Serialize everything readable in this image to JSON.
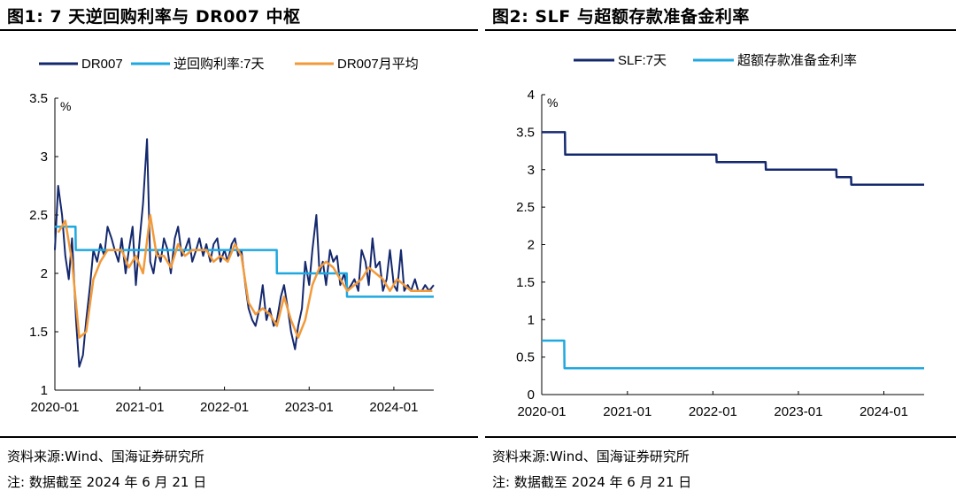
{
  "left": {
    "title": "图1:  7 天逆回购利率与 DR007 中枢",
    "source": "资料来源:Wind、国海证券研究所",
    "note": "注: 数据截至 2024 年 6 月 21 日",
    "colors": {
      "dr007": "#14286e",
      "repo": "#1fa8df",
      "avg": "#f29a3a"
    }
  },
  "right": {
    "title": "图2:  SLF 与超额存款准备金利率",
    "source": "资料来源:Wind、国海证券研究所",
    "note": "注: 数据截至 2024 年 6 月 21 日",
    "colors": {
      "slf": "#14286e",
      "excess": "#1fa8df"
    }
  },
  "chart_data": [
    {
      "type": "line",
      "title": "",
      "ylabel": "%",
      "ylim": [
        1,
        3.5
      ],
      "xlim": [
        "2020-01-01",
        "2024-06-21"
      ],
      "yticks": [
        "1",
        "1.5",
        "2",
        "2.5",
        "3",
        "3.5"
      ],
      "xticks": [
        "2020-01",
        "2021-01",
        "2022-01",
        "2023-01",
        "2024-01"
      ],
      "grid": false,
      "legend_position": "top",
      "series": [
        {
          "name": "DR007",
          "x": [
            "2020-01-01",
            "2020-01-15",
            "2020-02-01",
            "2020-02-15",
            "2020-03-01",
            "2020-03-15",
            "2020-04-01",
            "2020-04-15",
            "2020-05-01",
            "2020-05-15",
            "2020-06-01",
            "2020-06-15",
            "2020-07-01",
            "2020-07-15",
            "2020-08-01",
            "2020-08-15",
            "2020-09-01",
            "2020-09-15",
            "2020-10-01",
            "2020-10-15",
            "2020-11-01",
            "2020-11-15",
            "2020-12-01",
            "2020-12-15",
            "2021-01-01",
            "2021-01-15",
            "2021-02-01",
            "2021-02-15",
            "2021-03-01",
            "2021-03-15",
            "2021-04-01",
            "2021-04-15",
            "2021-05-01",
            "2021-05-15",
            "2021-06-01",
            "2021-06-15",
            "2021-07-01",
            "2021-07-15",
            "2021-08-01",
            "2021-08-15",
            "2021-09-01",
            "2021-09-15",
            "2021-10-01",
            "2021-10-15",
            "2021-11-01",
            "2021-11-15",
            "2021-12-01",
            "2021-12-15",
            "2022-01-01",
            "2022-01-15",
            "2022-02-01",
            "2022-02-15",
            "2022-03-01",
            "2022-03-15",
            "2022-04-01",
            "2022-04-15",
            "2022-05-01",
            "2022-05-15",
            "2022-06-01",
            "2022-06-15",
            "2022-07-01",
            "2022-07-15",
            "2022-08-01",
            "2022-08-15",
            "2022-09-01",
            "2022-09-15",
            "2022-10-01",
            "2022-10-15",
            "2022-11-01",
            "2022-11-15",
            "2022-12-01",
            "2022-12-15",
            "2023-01-01",
            "2023-01-15",
            "2023-02-01",
            "2023-02-15",
            "2023-03-01",
            "2023-03-15",
            "2023-04-01",
            "2023-04-15",
            "2023-05-01",
            "2023-05-15",
            "2023-06-01",
            "2023-06-15",
            "2023-07-01",
            "2023-07-15",
            "2023-08-01",
            "2023-08-15",
            "2023-09-01",
            "2023-09-15",
            "2023-10-01",
            "2023-10-15",
            "2023-11-01",
            "2023-11-15",
            "2023-12-01",
            "2023-12-15",
            "2024-01-01",
            "2024-01-15",
            "2024-02-01",
            "2024-02-15",
            "2024-03-01",
            "2024-03-15",
            "2024-04-01",
            "2024-04-15",
            "2024-05-01",
            "2024-05-15",
            "2024-06-01",
            "2024-06-21"
          ],
          "values": [
            2.2,
            2.75,
            2.5,
            2.15,
            1.95,
            2.3,
            1.6,
            1.2,
            1.3,
            1.6,
            1.9,
            2.2,
            2.1,
            2.25,
            2.15,
            2.4,
            2.3,
            2.2,
            2.1,
            2.3,
            2.0,
            2.2,
            2.4,
            1.9,
            2.3,
            2.6,
            3.15,
            2.1,
            2.0,
            2.2,
            2.1,
            2.3,
            2.2,
            2.0,
            2.3,
            2.4,
            2.15,
            2.2,
            2.3,
            2.1,
            2.2,
            2.3,
            2.15,
            2.25,
            2.1,
            2.25,
            2.3,
            2.1,
            2.2,
            2.1,
            2.25,
            2.3,
            2.15,
            2.2,
            1.9,
            1.7,
            1.6,
            1.55,
            1.7,
            1.9,
            1.6,
            1.7,
            1.55,
            1.6,
            1.8,
            1.9,
            1.7,
            1.5,
            1.35,
            1.55,
            1.7,
            2.1,
            1.9,
            2.2,
            2.5,
            2.0,
            2.1,
            1.9,
            2.2,
            2.1,
            2.15,
            1.9,
            2.0,
            1.85,
            1.9,
            1.95,
            1.85,
            2.2,
            2.1,
            1.9,
            2.3,
            2.05,
            2.1,
            1.85,
            1.95,
            2.2,
            1.9,
            1.85,
            2.2,
            1.85,
            1.9,
            1.85,
            1.95,
            1.85,
            1.85,
            1.9,
            1.85,
            1.9
          ]
        },
        {
          "name": "逆回购利率:7天",
          "x": [
            "2020-01-01",
            "2020-03-30",
            "2020-03-31",
            "2022-08-14",
            "2022-08-15",
            "2023-06-12",
            "2023-06-13",
            "2024-06-21"
          ],
          "values": [
            2.4,
            2.4,
            2.2,
            2.2,
            2.0,
            2.0,
            1.8,
            1.8
          ]
        },
        {
          "name": "DR007月平均",
          "x": [
            "2020-01-15",
            "2020-02-15",
            "2020-03-15",
            "2020-04-15",
            "2020-05-15",
            "2020-06-15",
            "2020-07-15",
            "2020-08-15",
            "2020-09-15",
            "2020-10-15",
            "2020-11-15",
            "2020-12-15",
            "2021-01-15",
            "2021-02-15",
            "2021-03-15",
            "2021-04-15",
            "2021-05-15",
            "2021-06-15",
            "2021-07-15",
            "2021-08-15",
            "2021-09-15",
            "2021-10-15",
            "2021-11-15",
            "2021-12-15",
            "2022-01-15",
            "2022-02-15",
            "2022-03-15",
            "2022-04-15",
            "2022-05-15",
            "2022-06-15",
            "2022-07-15",
            "2022-08-15",
            "2022-09-15",
            "2022-10-15",
            "2022-11-15",
            "2022-12-15",
            "2023-01-15",
            "2023-02-15",
            "2023-03-15",
            "2023-04-15",
            "2023-05-15",
            "2023-06-15",
            "2023-07-15",
            "2023-08-15",
            "2023-09-15",
            "2023-10-15",
            "2023-11-15",
            "2023-12-15",
            "2024-01-15",
            "2024-02-15",
            "2024-03-15",
            "2024-04-15",
            "2024-05-15",
            "2024-06-15"
          ],
          "values": [
            2.35,
            2.45,
            2.1,
            1.45,
            1.5,
            1.95,
            2.1,
            2.2,
            2.2,
            2.2,
            2.05,
            2.15,
            2.0,
            2.5,
            2.15,
            2.15,
            2.05,
            2.25,
            2.15,
            2.2,
            2.2,
            2.2,
            2.1,
            2.15,
            2.1,
            2.25,
            2.15,
            1.75,
            1.65,
            1.7,
            1.65,
            1.55,
            1.8,
            1.6,
            1.45,
            1.6,
            1.9,
            2.05,
            2.1,
            2.05,
            1.95,
            1.85,
            1.9,
            1.95,
            2.05,
            2.0,
            1.95,
            1.85,
            1.95,
            1.9,
            1.85,
            1.85,
            1.85,
            1.85
          ]
        }
      ]
    },
    {
      "type": "line",
      "title": "",
      "ylabel": "%",
      "ylim": [
        0,
        4
      ],
      "xlim": [
        "2020-01-01",
        "2024-06-21"
      ],
      "yticks": [
        "0",
        "0.5",
        "1",
        "1.5",
        "2",
        "2.5",
        "3",
        "3.5",
        "4"
      ],
      "xticks": [
        "2020-01",
        "2021-01",
        "2022-01",
        "2023-01",
        "2024-01"
      ],
      "grid": false,
      "legend_position": "top",
      "series": [
        {
          "name": "SLF:7天",
          "x": [
            "2020-01-01",
            "2020-04-09",
            "2020-04-10",
            "2022-01-16",
            "2022-01-17",
            "2022-08-14",
            "2022-08-15",
            "2023-06-12",
            "2023-06-13",
            "2023-08-14",
            "2023-08-15",
            "2024-06-21"
          ],
          "values": [
            3.5,
            3.5,
            3.2,
            3.2,
            3.1,
            3.1,
            3.0,
            3.0,
            2.9,
            2.9,
            2.8,
            2.8
          ]
        },
        {
          "name": "超额存款准备金利率",
          "x": [
            "2020-01-01",
            "2020-04-06",
            "2020-04-07",
            "2024-06-21"
          ],
          "values": [
            0.72,
            0.72,
            0.35,
            0.35
          ]
        }
      ]
    }
  ]
}
